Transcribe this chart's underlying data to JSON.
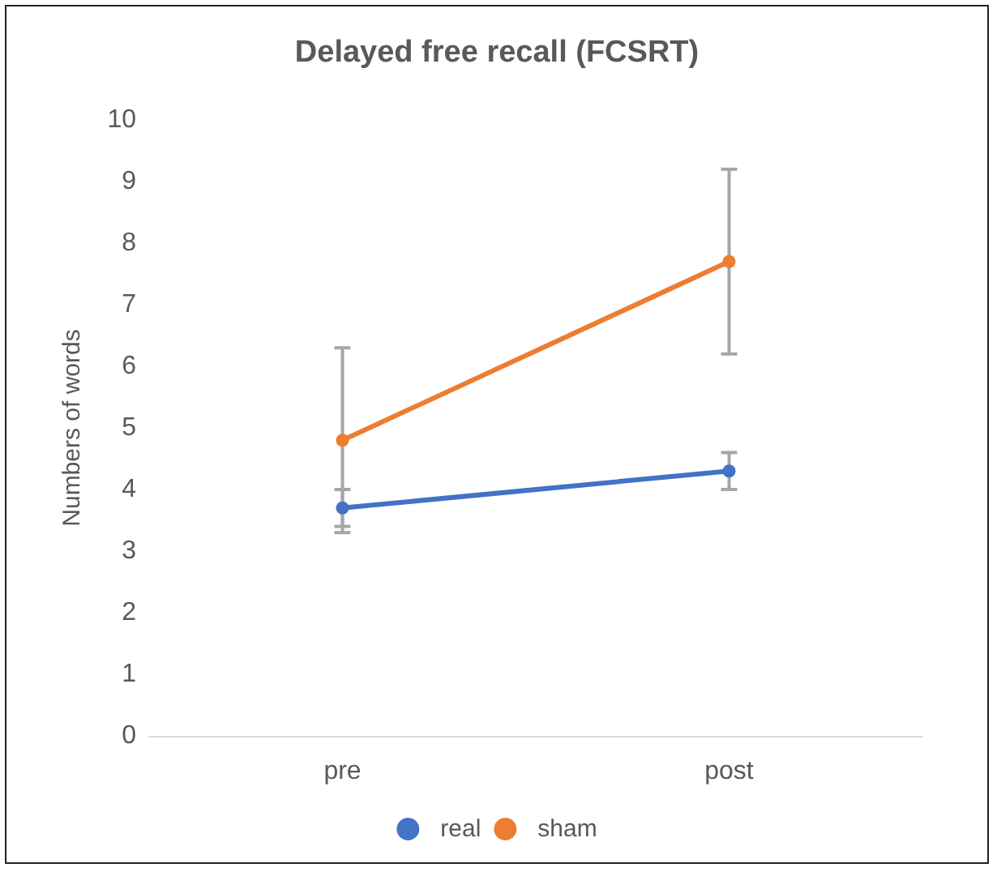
{
  "chart_data": {
    "type": "line",
    "title": "Delayed free recall (FCSRT)",
    "ylabel": "Numbers of words",
    "categories": [
      "pre",
      "post"
    ],
    "series": [
      {
        "name": "real",
        "color": "#4472c4",
        "values": [
          3.7,
          4.3
        ],
        "errors": [
          0.3,
          0.3
        ]
      },
      {
        "name": "sham",
        "color": "#ed7d31",
        "values": [
          4.8,
          7.7
        ],
        "errors": [
          1.5,
          1.5
        ]
      }
    ],
    "ylim": [
      0,
      10
    ],
    "yticks": [
      0,
      1,
      2,
      3,
      4,
      5,
      6,
      7,
      8,
      9,
      10
    ],
    "grid": false,
    "legend": "bottom",
    "marker": "circle",
    "line_style": "solid"
  }
}
